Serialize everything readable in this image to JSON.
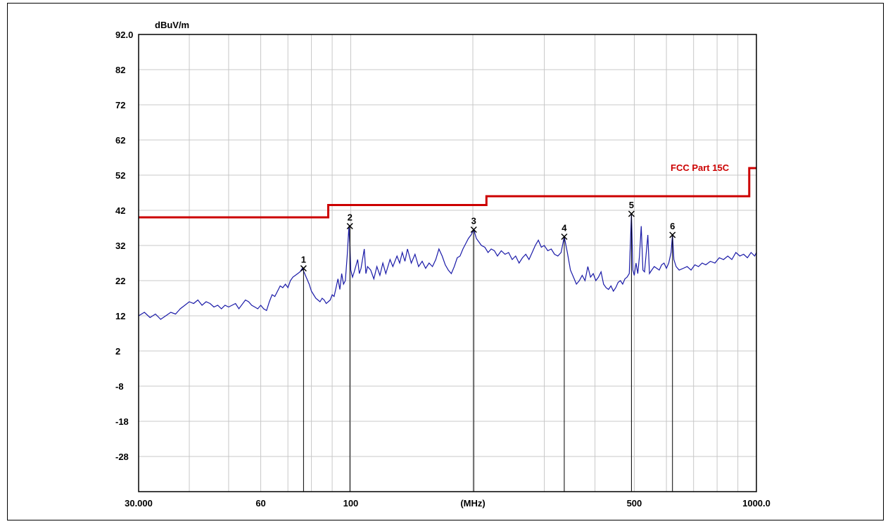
{
  "chart_data": {
    "type": "line",
    "title": "",
    "xlabel": "(MHz)",
    "ylabel": "dBuV/m",
    "x_scale": "log",
    "xlim": [
      30,
      1000
    ],
    "ylim": [
      -38,
      92
    ],
    "grid": true,
    "y_ticks": [
      "92.0",
      "82",
      "72",
      "62",
      "52",
      "42",
      "32",
      "22",
      "12",
      "2",
      "-8",
      "-18",
      "-28"
    ],
    "y_tick_values": [
      92,
      82,
      72,
      62,
      52,
      42,
      32,
      22,
      12,
      2,
      -8,
      -18,
      -28
    ],
    "x_ticks": [
      "30.000",
      "60",
      "100",
      "(MHz)",
      "500",
      "1000.0"
    ],
    "x_tick_values": [
      30,
      60,
      100,
      200,
      500,
      1000
    ],
    "limit_line": {
      "name": "FCC Part 15C",
      "color": "#cc0000",
      "points": [
        [
          30,
          40
        ],
        [
          88,
          40
        ],
        [
          88,
          43.5
        ],
        [
          216,
          43.5
        ],
        [
          216,
          46
        ],
        [
          960,
          46
        ],
        [
          960,
          54
        ],
        [
          1000,
          54
        ]
      ]
    },
    "series": [
      {
        "color": "#1a1aa8",
        "points": [
          [
            30,
            12
          ],
          [
            31,
            13
          ],
          [
            32,
            11.5
          ],
          [
            33,
            12.5
          ],
          [
            34,
            11
          ],
          [
            35,
            12
          ],
          [
            36,
            13
          ],
          [
            37,
            12.5
          ],
          [
            38,
            14
          ],
          [
            39,
            15
          ],
          [
            40,
            16
          ],
          [
            41,
            15.5
          ],
          [
            42,
            16.5
          ],
          [
            43,
            15
          ],
          [
            44,
            16
          ],
          [
            45,
            15.5
          ],
          [
            46,
            14.5
          ],
          [
            47,
            15
          ],
          [
            48,
            14
          ],
          [
            49,
            15
          ],
          [
            50,
            14.5
          ],
          [
            52,
            15.5
          ],
          [
            53,
            14
          ],
          [
            55,
            16.5
          ],
          [
            56,
            16
          ],
          [
            57,
            15
          ],
          [
            58,
            14.5
          ],
          [
            59,
            14
          ],
          [
            60,
            15
          ],
          [
            61,
            14
          ],
          [
            62,
            13.5
          ],
          [
            63,
            16
          ],
          [
            64,
            18
          ],
          [
            65,
            17.5
          ],
          [
            66,
            19
          ],
          [
            67,
            20.5
          ],
          [
            68,
            20
          ],
          [
            69,
            21
          ],
          [
            70,
            20
          ],
          [
            71,
            22
          ],
          [
            72,
            23
          ],
          [
            73,
            23.5
          ],
          [
            74,
            24
          ],
          [
            75,
            24.5
          ],
          [
            76,
            25.5
          ],
          [
            77,
            24
          ],
          [
            78,
            22.5
          ],
          [
            79,
            21
          ],
          [
            80,
            19
          ],
          [
            81,
            18
          ],
          [
            82,
            17
          ],
          [
            83,
            16.5
          ],
          [
            84,
            16
          ],
          [
            85,
            17
          ],
          [
            86,
            16.5
          ],
          [
            87,
            15.5
          ],
          [
            88,
            16
          ],
          [
            89,
            16.5
          ],
          [
            90,
            18
          ],
          [
            91,
            17.5
          ],
          [
            92,
            20
          ],
          [
            93,
            22.5
          ],
          [
            94,
            19.5
          ],
          [
            95,
            24
          ],
          [
            96,
            21
          ],
          [
            97,
            22
          ],
          [
            98,
            29
          ],
          [
            99,
            37.5
          ],
          [
            100,
            25
          ],
          [
            101,
            23
          ],
          [
            102,
            24.5
          ],
          [
            104,
            28
          ],
          [
            105,
            24
          ],
          [
            106,
            25.5
          ],
          [
            108,
            31
          ],
          [
            109,
            24
          ],
          [
            110,
            26
          ],
          [
            112,
            25
          ],
          [
            114,
            22.5
          ],
          [
            116,
            26
          ],
          [
            118,
            23.5
          ],
          [
            120,
            27
          ],
          [
            122,
            24
          ],
          [
            125,
            28
          ],
          [
            127,
            26
          ],
          [
            130,
            29
          ],
          [
            132,
            27
          ],
          [
            134,
            30
          ],
          [
            136,
            27.5
          ],
          [
            138,
            31
          ],
          [
            141,
            27
          ],
          [
            144,
            29.5
          ],
          [
            147,
            26
          ],
          [
            150,
            27.5
          ],
          [
            153,
            25.5
          ],
          [
            156,
            27
          ],
          [
            159,
            26
          ],
          [
            162,
            28
          ],
          [
            165,
            31
          ],
          [
            168,
            29
          ],
          [
            171,
            26.5
          ],
          [
            174,
            25
          ],
          [
            177,
            24
          ],
          [
            180,
            26
          ],
          [
            183,
            28.5
          ],
          [
            186,
            29
          ],
          [
            189,
            31
          ],
          [
            192,
            32.5
          ],
          [
            195,
            34
          ],
          [
            198,
            35
          ],
          [
            201,
            36.5
          ],
          [
            204,
            34
          ],
          [
            207,
            33
          ],
          [
            210,
            32
          ],
          [
            214,
            31.5
          ],
          [
            218,
            30
          ],
          [
            222,
            31
          ],
          [
            226,
            30.5
          ],
          [
            230,
            29
          ],
          [
            235,
            30.5
          ],
          [
            240,
            29.5
          ],
          [
            245,
            30
          ],
          [
            250,
            28
          ],
          [
            255,
            29
          ],
          [
            260,
            27
          ],
          [
            265,
            28.5
          ],
          [
            270,
            29.5
          ],
          [
            275,
            28
          ],
          [
            280,
            30
          ],
          [
            285,
            32
          ],
          [
            290,
            33.5
          ],
          [
            295,
            31.5
          ],
          [
            300,
            32
          ],
          [
            306,
            30.5
          ],
          [
            312,
            31
          ],
          [
            318,
            29.5
          ],
          [
            324,
            29
          ],
          [
            330,
            30
          ],
          [
            336,
            34.5
          ],
          [
            342,
            30
          ],
          [
            348,
            25
          ],
          [
            354,
            23
          ],
          [
            360,
            21
          ],
          [
            366,
            22
          ],
          [
            372,
            23.5
          ],
          [
            378,
            22
          ],
          [
            384,
            26
          ],
          [
            390,
            23
          ],
          [
            396,
            24
          ],
          [
            402,
            22
          ],
          [
            408,
            23
          ],
          [
            414,
            24.5
          ],
          [
            420,
            21
          ],
          [
            426,
            20
          ],
          [
            432,
            19.5
          ],
          [
            438,
            20.5
          ],
          [
            444,
            19
          ],
          [
            450,
            20
          ],
          [
            456,
            21.5
          ],
          [
            462,
            22
          ],
          [
            468,
            21
          ],
          [
            474,
            22.5
          ],
          [
            480,
            23
          ],
          [
            486,
            24
          ],
          [
            492,
            41
          ],
          [
            496,
            25
          ],
          [
            500,
            23.5
          ],
          [
            505,
            27
          ],
          [
            510,
            24
          ],
          [
            515,
            29
          ],
          [
            520,
            37.5
          ],
          [
            525,
            25
          ],
          [
            530,
            24.5
          ],
          [
            540,
            35
          ],
          [
            545,
            24
          ],
          [
            552,
            25
          ],
          [
            560,
            26
          ],
          [
            568,
            25.5
          ],
          [
            576,
            25
          ],
          [
            584,
            26.5
          ],
          [
            592,
            27
          ],
          [
            600,
            25.5
          ],
          [
            608,
            27
          ],
          [
            616,
            30
          ],
          [
            621,
            35
          ],
          [
            626,
            28
          ],
          [
            634,
            26
          ],
          [
            645,
            25
          ],
          [
            660,
            25.5
          ],
          [
            675,
            26
          ],
          [
            690,
            25
          ],
          [
            705,
            26.5
          ],
          [
            720,
            26
          ],
          [
            735,
            27
          ],
          [
            750,
            26.5
          ],
          [
            770,
            27.5
          ],
          [
            790,
            27
          ],
          [
            810,
            28.5
          ],
          [
            830,
            28
          ],
          [
            850,
            29
          ],
          [
            870,
            28
          ],
          [
            890,
            30
          ],
          [
            910,
            29
          ],
          [
            930,
            29.5
          ],
          [
            950,
            28.5
          ],
          [
            970,
            30
          ],
          [
            990,
            29
          ],
          [
            1000,
            30
          ]
        ]
      }
    ],
    "markers": [
      {
        "label": "1",
        "x": 76.5,
        "y": 25.5
      },
      {
        "label": "2",
        "x": 99.5,
        "y": 37.5
      },
      {
        "label": "3",
        "x": 201,
        "y": 36.5
      },
      {
        "label": "4",
        "x": 336,
        "y": 34.5
      },
      {
        "label": "5",
        "x": 492,
        "y": 41
      },
      {
        "label": "6",
        "x": 621,
        "y": 35
      }
    ]
  }
}
